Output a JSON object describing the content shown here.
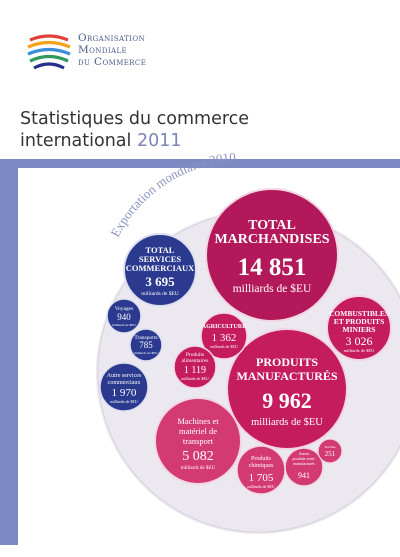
{
  "header": {
    "org_lines": [
      "Organisation",
      "Mondiale",
      "du Commerce"
    ],
    "title_line1": "Statistiques du commerce",
    "title_line2": "international",
    "year": "2011"
  },
  "figure": {
    "arc_label": "Exportation mondiales 2010",
    "total": {
      "label1": "TOTAL",
      "label2": "MARCHANDISES",
      "value": "14 851",
      "unit": "milliards de $EU"
    },
    "services": {
      "label1": "TOTAL",
      "label2": "SERVICES",
      "label3": "COMMERCIAUX",
      "value": "3 695",
      "unit": "milliards de $EU"
    },
    "voyages": {
      "label": "Voyages",
      "value": "940",
      "unit": "milliards de $EU"
    },
    "transports": {
      "label": "Transports",
      "value": "785",
      "unit": "milliards de $EU"
    },
    "autres": {
      "label1": "Autre services",
      "label2": "commerciaux",
      "value": "1 970",
      "unit": "milliards de $EU"
    },
    "manufactures": {
      "label1": "PRODUITS",
      "label2": "MANUFACTURÉS",
      "value": "9 962",
      "unit": "milliards de $EU"
    },
    "combustibles": {
      "label1": "COMBUSTIBLES",
      "label2": "ET PRODUITS",
      "label3": "MINIERS",
      "value": "3 026",
      "unit": "milliards de $EU"
    },
    "agriculture": {
      "label": "AGRICULTURE",
      "value": "1 362",
      "unit": "milliards de $EU"
    },
    "alimentaires": {
      "label1": "Produits",
      "label2": "alimentaires",
      "value": "1 119",
      "unit": "milliards de $EU"
    },
    "machines": {
      "label1": "Machines et",
      "label2": "matériel de",
      "label3": "transport",
      "value": "5 082",
      "unit": "milliards de $EU"
    },
    "chimiques": {
      "label1": "Produits",
      "label2": "chimiques",
      "value": "1 705",
      "unit": "milliards de $EU"
    },
    "autres_produits": {
      "label1": "Autres",
      "label2": "produits semi-",
      "label3": "manufacturés",
      "value": "941"
    },
    "small": {
      "label": "Textiles",
      "value": "251"
    }
  }
}
